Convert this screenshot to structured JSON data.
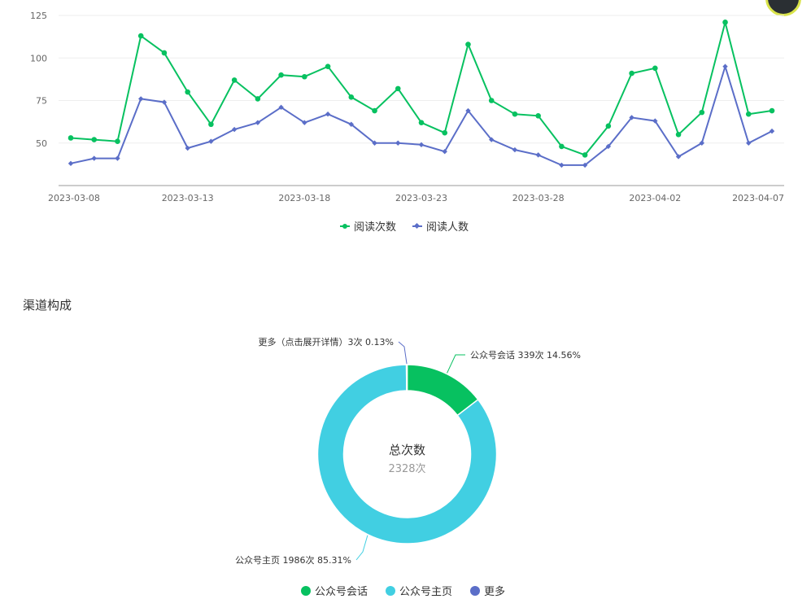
{
  "colors": {
    "green": "#07c160",
    "blue": "#5b6ec8",
    "cyan": "#41cfe2",
    "grid": "#eeeeee",
    "axis": "#999999"
  },
  "icons": {
    "corner_widget": "circle-badge-icon"
  },
  "line_legend": [
    {
      "label": "阅读次数",
      "color": "#07c160",
      "marker": "circle"
    },
    {
      "label": "阅读人数",
      "color": "#5b6ec8",
      "marker": "diamond"
    }
  ],
  "section": {
    "title": "渠道构成"
  },
  "donut_center": {
    "title": "总次数",
    "value": "2328次"
  },
  "pie_legend": [
    {
      "label": "公众号会话",
      "color": "#07c160"
    },
    {
      "label": "公众号主页",
      "color": "#41cfe2"
    },
    {
      "label": "更多",
      "color": "#5b6ec8"
    }
  ],
  "chart_data": [
    {
      "type": "line",
      "title": "",
      "xlabel": "",
      "ylabel": "",
      "x": [
        "2023-03-08",
        "2023-03-09",
        "2023-03-10",
        "2023-03-11",
        "2023-03-12",
        "2023-03-13",
        "2023-03-14",
        "2023-03-15",
        "2023-03-16",
        "2023-03-17",
        "2023-03-18",
        "2023-03-19",
        "2023-03-20",
        "2023-03-21",
        "2023-03-22",
        "2023-03-23",
        "2023-03-24",
        "2023-03-25",
        "2023-03-26",
        "2023-03-27",
        "2023-03-28",
        "2023-03-29",
        "2023-03-30",
        "2023-03-31",
        "2023-04-01",
        "2023-04-02",
        "2023-04-03",
        "2023-04-04",
        "2023-04-05",
        "2023-04-06",
        "2023-04-07"
      ],
      "x_tick_labels": [
        "2023-03-08",
        "2023-03-13",
        "2023-03-18",
        "2023-03-23",
        "2023-03-28",
        "2023-04-02",
        "2023-04-07"
      ],
      "y_ticks": [
        50,
        75,
        100,
        125
      ],
      "ylim": [
        25,
        125
      ],
      "grid": true,
      "legend_position": "bottom",
      "series": [
        {
          "name": "阅读次数",
          "color": "#07c160",
          "values": [
            53,
            52,
            51,
            113,
            103,
            80,
            61,
            87,
            76,
            90,
            89,
            95,
            77,
            69,
            82,
            62,
            56,
            108,
            75,
            67,
            66,
            48,
            43,
            60,
            91,
            94,
            55,
            68,
            121,
            67,
            69
          ]
        },
        {
          "name": "阅读人数",
          "color": "#5b6ec8",
          "values": [
            38,
            41,
            41,
            76,
            74,
            47,
            51,
            58,
            62,
            71,
            62,
            67,
            61,
            50,
            50,
            49,
            45,
            69,
            52,
            46,
            43,
            37,
            37,
            48,
            65,
            63,
            42,
            50,
            95,
            50,
            57
          ]
        }
      ]
    },
    {
      "type": "pie",
      "title": "",
      "donut": true,
      "legend_position": "bottom",
      "slices": [
        {
          "name": "公众号会话",
          "value": 339,
          "percent": 14.56,
          "color": "#07c160",
          "label": "公众号会话 339次 14.56%"
        },
        {
          "name": "公众号主页",
          "value": 1986,
          "percent": 85.31,
          "color": "#41cfe2",
          "label": "公众号主页 1986次 85.31%"
        },
        {
          "name": "更多",
          "value": 3,
          "percent": 0.13,
          "color": "#5b6ec8",
          "label": "更多（点击展开详情）3次 0.13%"
        }
      ]
    }
  ]
}
